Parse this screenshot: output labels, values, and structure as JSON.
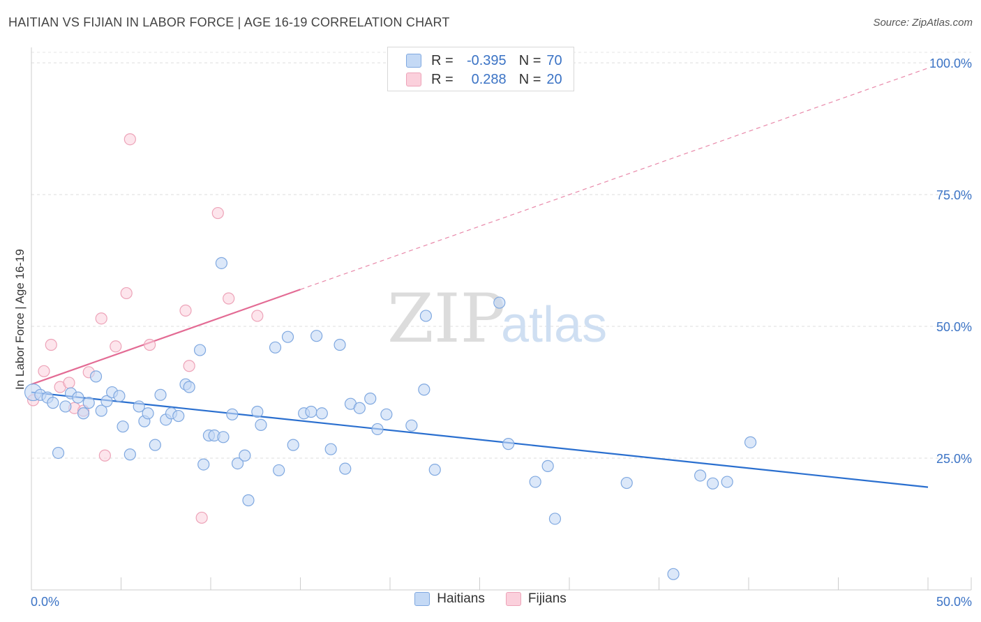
{
  "header": {
    "title": "HAITIAN VS FIJIAN IN LABOR FORCE | AGE 16-19 CORRELATION CHART",
    "source": "Source: ZipAtlas.com"
  },
  "legend_stats": [
    {
      "r_label": "R =",
      "r_value": "-0.395",
      "n_label": "N =",
      "n_value": "70"
    },
    {
      "r_label": "R =",
      "r_value": "0.288",
      "n_label": "N =",
      "n_value": "20"
    }
  ],
  "colors": {
    "haitian_fill": "#c4d9f5",
    "haitian_stroke": "#7fa8e0",
    "haitian_line": "#2a6fcf",
    "fijian_fill": "#fbd0dc",
    "fijian_stroke": "#eda3b8",
    "fijian_line": "#e36b94",
    "axis_label": "#3b73c5"
  },
  "watermark": {
    "zip": "ZIP",
    "atlas": "atlas"
  },
  "chart_data": {
    "type": "scatter",
    "title": "HAITIAN VS FIJIAN IN LABOR FORCE | AGE 16-19 CORRELATION CHART",
    "xlabel": "",
    "ylabel": "In Labor Force | Age 16-19",
    "xlim": [
      0,
      50
    ],
    "ylim": [
      0,
      102
    ],
    "x_tick_labels": [
      "0.0%",
      "50.0%"
    ],
    "y_ticks": [
      25,
      50,
      75,
      100
    ],
    "y_tick_labels": [
      "25.0%",
      "50.0%",
      "75.0%",
      "100.0%"
    ],
    "legend": [
      "Haitians",
      "Fijians"
    ],
    "series": [
      {
        "name": "Haitians",
        "r": -0.395,
        "n": 70,
        "trend": {
          "x": [
            0,
            50
          ],
          "y": [
            37.5,
            19.5
          ]
        },
        "points": [
          [
            0.1,
            37.5
          ],
          [
            0.5,
            37
          ],
          [
            0.9,
            36.5
          ],
          [
            1.2,
            35.5
          ],
          [
            1.5,
            26
          ],
          [
            1.9,
            34.8
          ],
          [
            2.2,
            37.3
          ],
          [
            2.6,
            36.5
          ],
          [
            2.9,
            33.5
          ],
          [
            3.2,
            35.5
          ],
          [
            3.6,
            40.5
          ],
          [
            3.9,
            34
          ],
          [
            4.2,
            35.8
          ],
          [
            4.5,
            37.5
          ],
          [
            4.9,
            36.8
          ],
          [
            5.1,
            31
          ],
          [
            5.5,
            25.7
          ],
          [
            6.0,
            34.8
          ],
          [
            6.3,
            32
          ],
          [
            6.5,
            33.5
          ],
          [
            6.9,
            27.5
          ],
          [
            7.2,
            37
          ],
          [
            7.5,
            32.3
          ],
          [
            7.8,
            33.5
          ],
          [
            8.2,
            33
          ],
          [
            8.6,
            39
          ],
          [
            8.8,
            38.5
          ],
          [
            9.4,
            45.5
          ],
          [
            9.6,
            23.8
          ],
          [
            9.9,
            29.3
          ],
          [
            10.2,
            29.3
          ],
          [
            10.7,
            29
          ],
          [
            10.6,
            62
          ],
          [
            11.2,
            33.3
          ],
          [
            11.5,
            24
          ],
          [
            11.9,
            25.5
          ],
          [
            12.1,
            17
          ],
          [
            12.6,
            33.8
          ],
          [
            12.8,
            31.3
          ],
          [
            13.6,
            46
          ],
          [
            13.8,
            22.7
          ],
          [
            14.3,
            48
          ],
          [
            14.6,
            27.5
          ],
          [
            15.2,
            33.5
          ],
          [
            15.6,
            33.8
          ],
          [
            15.9,
            48.2
          ],
          [
            16.2,
            33.5
          ],
          [
            16.7,
            26.7
          ],
          [
            17.2,
            46.5
          ],
          [
            17.5,
            23
          ],
          [
            17.8,
            35.3
          ],
          [
            18.3,
            34.5
          ],
          [
            18.9,
            36.3
          ],
          [
            19.3,
            30.5
          ],
          [
            19.8,
            33.3
          ],
          [
            21.2,
            31.2
          ],
          [
            21.9,
            38
          ],
          [
            22.0,
            52
          ],
          [
            22.5,
            22.8
          ],
          [
            26.1,
            54.5
          ],
          [
            26.6,
            27.7
          ],
          [
            28.1,
            20.5
          ],
          [
            28.8,
            23.5
          ],
          [
            29.2,
            13.5
          ],
          [
            33.2,
            20.3
          ],
          [
            37.3,
            21.7
          ],
          [
            38.0,
            20.2
          ],
          [
            38.8,
            20.5
          ],
          [
            40.1,
            28
          ],
          [
            35.8,
            3
          ]
        ]
      },
      {
        "name": "Fijians",
        "r": 0.288,
        "n": 20,
        "trend": {
          "x": [
            0,
            15
          ],
          "y": [
            39,
            57
          ]
        },
        "trend_extended": {
          "x": [
            15,
            50
          ],
          "y": [
            57,
            99
          ]
        },
        "points": [
          [
            0.1,
            36
          ],
          [
            0.7,
            41.5
          ],
          [
            1.1,
            46.5
          ],
          [
            1.6,
            38.5
          ],
          [
            2.1,
            39.3
          ],
          [
            2.4,
            34.5
          ],
          [
            2.9,
            34
          ],
          [
            3.2,
            41.3
          ],
          [
            3.9,
            51.5
          ],
          [
            4.1,
            25.5
          ],
          [
            4.7,
            46.2
          ],
          [
            5.3,
            56.3
          ],
          [
            5.5,
            85.5
          ],
          [
            6.6,
            46.5
          ],
          [
            8.6,
            53
          ],
          [
            8.8,
            42.5
          ],
          [
            9.5,
            13.7
          ],
          [
            10.4,
            71.5
          ],
          [
            11.0,
            55.3
          ],
          [
            12.6,
            52
          ]
        ]
      }
    ]
  }
}
